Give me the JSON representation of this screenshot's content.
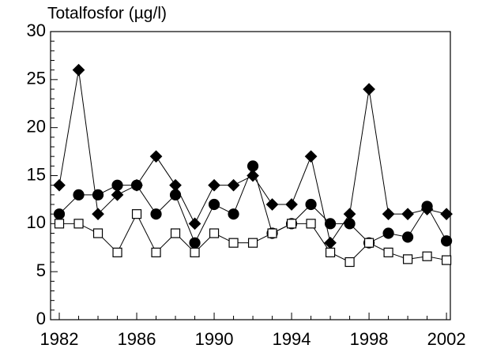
{
  "chart_data": {
    "type": "line",
    "title": "Totalfosfor (µg/l)",
    "x": [
      1982,
      1983,
      1984,
      1985,
      1986,
      1987,
      1988,
      1989,
      1990,
      1991,
      1992,
      1993,
      1994,
      1995,
      1996,
      1997,
      1998,
      1999,
      2000,
      2001,
      2002
    ],
    "series": [
      {
        "color": "#000000",
        "marker": "diamond",
        "fill": "#000000",
        "values": [
          14,
          26,
          11,
          13,
          14,
          17,
          14,
          10,
          14,
          14,
          15,
          12,
          12,
          17,
          8,
          11,
          24,
          11,
          11,
          11.5,
          11
        ]
      },
      {
        "color": "#000000",
        "marker": "circle",
        "fill": "#000000",
        "values": [
          11,
          13,
          13,
          14,
          14,
          11,
          13,
          8,
          12,
          11,
          16,
          9,
          10,
          12,
          10,
          10,
          8,
          9,
          8.6,
          11.8,
          8.2
        ]
      },
      {
        "color": "#000000",
        "marker": "square",
        "fill": "#ffffff",
        "values": [
          10,
          10,
          9,
          7,
          11,
          7,
          9,
          7,
          9,
          8,
          8,
          9,
          10,
          10,
          7,
          6,
          8,
          7,
          6.3,
          6.6,
          6.2
        ]
      }
    ],
    "xlim": [
      1981.55,
      2002.2
    ],
    "xticks": [
      1982,
      1986,
      1990,
      1994,
      1998,
      2002
    ],
    "ylim": [
      0,
      30
    ],
    "yticks": [
      0,
      5,
      10,
      15,
      20,
      25,
      30
    ],
    "grid": false
  }
}
